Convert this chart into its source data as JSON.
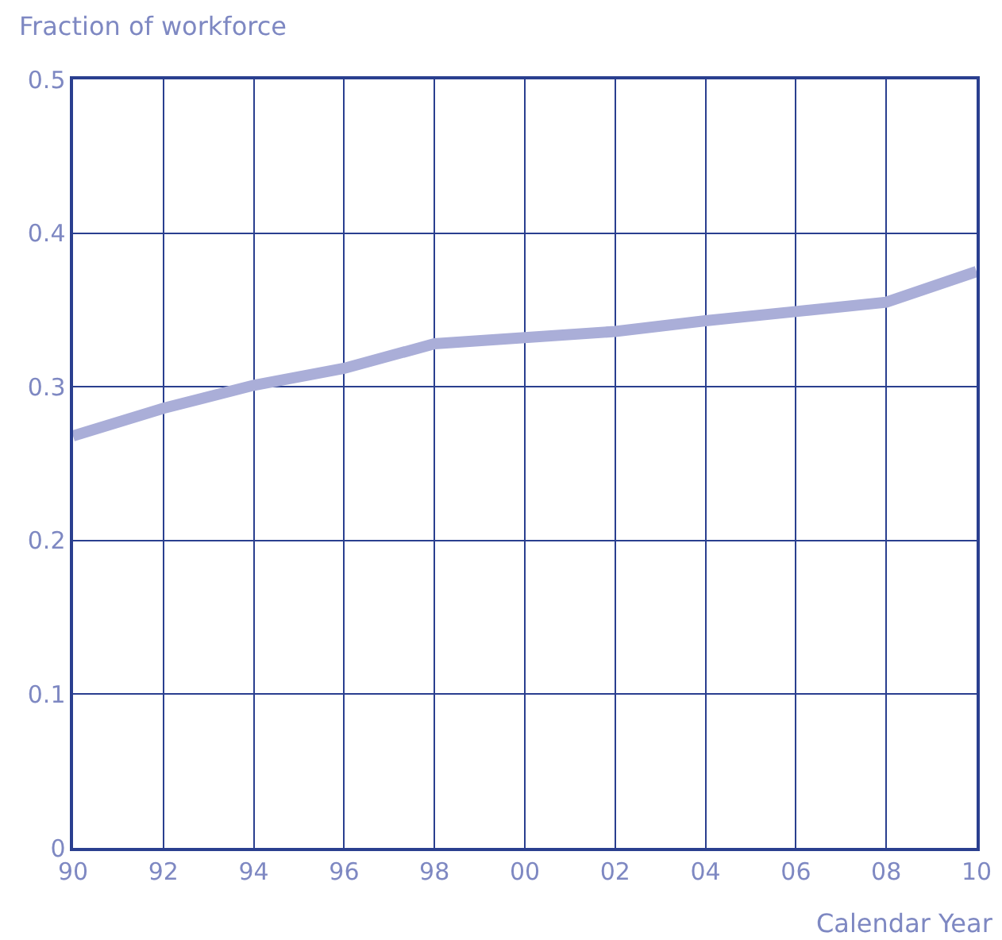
{
  "chart_data": {
    "type": "line",
    "xlabel": "Calendar Year",
    "ylabel": "Fraction of workforce",
    "x": [
      1990,
      1992,
      1994,
      1996,
      1998,
      2000,
      2002,
      2004,
      2006,
      2008,
      2010
    ],
    "series": [
      {
        "color": "#aaaed8",
        "values": [
          0.268,
          0.286,
          0.301,
          0.312,
          0.328,
          0.332,
          0.336,
          0.343,
          0.349,
          0.355,
          0.375
        ]
      }
    ],
    "xlim": [
      1990,
      2010
    ],
    "xticks": [
      {
        "value": 1990,
        "label": "90"
      },
      {
        "value": 1992,
        "label": "92"
      },
      {
        "value": 1994,
        "label": "94"
      },
      {
        "value": 1996,
        "label": "96"
      },
      {
        "value": 1998,
        "label": "98"
      },
      {
        "value": 2000,
        "label": "00"
      },
      {
        "value": 2002,
        "label": "02"
      },
      {
        "value": 2004,
        "label": "04"
      },
      {
        "value": 2006,
        "label": "06"
      },
      {
        "value": 2008,
        "label": "08"
      },
      {
        "value": 2010,
        "label": "10"
      }
    ],
    "ylim": [
      0,
      0.5
    ],
    "yticks": [
      0,
      0.1,
      0.2,
      0.3,
      0.4,
      0.5
    ],
    "grid": true,
    "legend": false,
    "marker": "none",
    "line_style": "solid"
  }
}
